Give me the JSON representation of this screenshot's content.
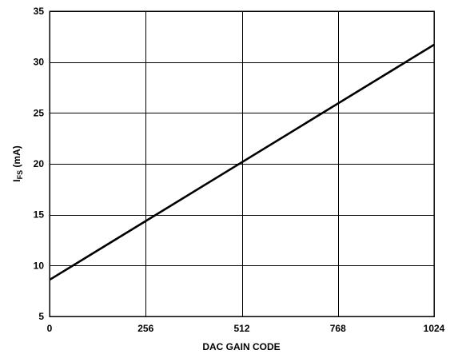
{
  "chart_data": {
    "type": "line",
    "xlabel": "DAC GAIN CODE",
    "ylabel_main": "I",
    "ylabel_sub": "FS",
    "ylabel_unit": " (mA)",
    "xlim": [
      0,
      1024
    ],
    "ylim": [
      5,
      35
    ],
    "xticks": [
      0,
      256,
      512,
      768,
      1024
    ],
    "yticks": [
      5,
      10,
      15,
      20,
      25,
      30,
      35
    ],
    "grid": true,
    "series": [
      {
        "x": [
          0,
          1024
        ],
        "y": [
          8.6,
          31.7
        ]
      }
    ],
    "colors": {
      "line": "#000000",
      "grid": "#000000",
      "background": "#ffffff"
    }
  }
}
